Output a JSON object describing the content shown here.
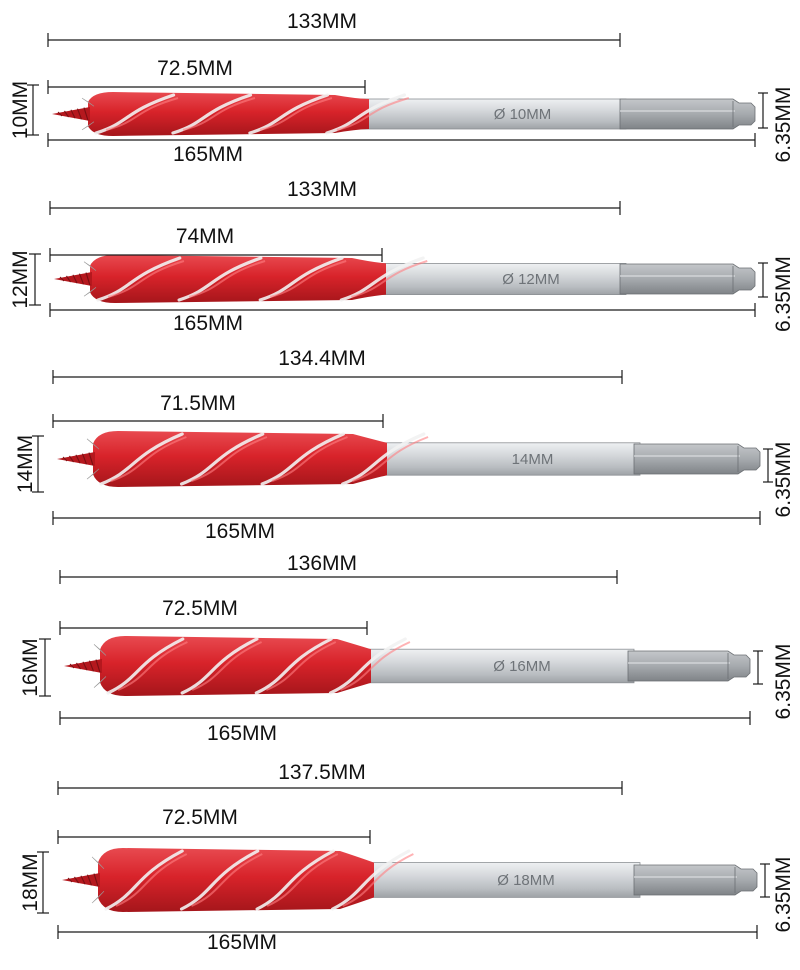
{
  "colors": {
    "flute_red": "#d8232a",
    "flute_highlight": "#ff7e82",
    "shank_silver": "#c9cdd1",
    "hex_steel": "#9fa3a7",
    "tip_red": "#b5181e",
    "dimension_line": "#1a1a1a"
  },
  "bits": [
    {
      "diameter_label": "10MM",
      "flute_length_label": "72.5MM",
      "mid_length_label": "133MM",
      "total_length_label": "165MM",
      "hex_label": "6.35MM",
      "shank_marking": "Ø 10MM"
    },
    {
      "diameter_label": "12MM",
      "flute_length_label": "74MM",
      "mid_length_label": "133MM",
      "total_length_label": "165MM",
      "hex_label": "6.35MM",
      "shank_marking": "Ø 12MM"
    },
    {
      "diameter_label": "14MM",
      "flute_length_label": "71.5MM",
      "mid_length_label": "134.4MM",
      "total_length_label": "165MM",
      "hex_label": "6.35MM",
      "shank_marking": "14MM"
    },
    {
      "diameter_label": "16MM",
      "flute_length_label": "72.5MM",
      "mid_length_label": "136MM",
      "total_length_label": "165MM",
      "hex_label": "6.35MM",
      "shank_marking": "Ø 16MM"
    },
    {
      "diameter_label": "18MM",
      "flute_length_label": "72.5MM",
      "mid_length_label": "137.5MM",
      "total_length_label": "165MM",
      "hex_label": "6.35MM",
      "shank_marking": "Ø 18MM"
    }
  ]
}
